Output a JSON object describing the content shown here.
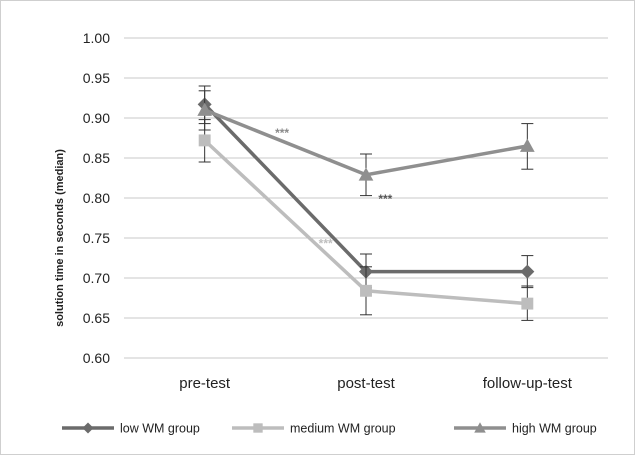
{
  "chart_data": {
    "type": "line",
    "title": "",
    "xlabel": "",
    "ylabel": "solution time in seconds (median)",
    "ylim": [
      0.6,
      1.0
    ],
    "yticks": [
      "1.00",
      "0.95",
      "0.90",
      "0.85",
      "0.80",
      "0.75",
      "0.70",
      "0.65",
      "0.60"
    ],
    "categories": [
      "pre-test",
      "post-test",
      "follow-up-test"
    ],
    "grid": true,
    "legend_position": "bottom",
    "series": [
      {
        "name": "low WM group",
        "color": "#6b6b6b",
        "marker": "diamond",
        "values": [
          0.917,
          0.708,
          0.708
        ],
        "error_low": [
          0.893,
          0.688,
          0.688
        ],
        "error_high": [
          0.94,
          0.73,
          0.728
        ]
      },
      {
        "name": "medium WM group",
        "color": "#bdbdbd",
        "marker": "square",
        "values": [
          0.872,
          0.684,
          0.668
        ],
        "error_low": [
          0.845,
          0.654,
          0.647
        ],
        "error_high": [
          0.898,
          0.714,
          0.69
        ]
      },
      {
        "name": "high WM group",
        "color": "#8f8f8f",
        "marker": "triangle",
        "values": [
          0.91,
          0.829,
          0.865
        ],
        "error_low": [
          0.885,
          0.803,
          0.836
        ],
        "error_high": [
          0.934,
          0.855,
          0.893
        ]
      }
    ],
    "annotations": [
      {
        "text": "***",
        "series": "high WM group",
        "x": 0.48,
        "y": 0.876,
        "color": "#8a8a8a"
      },
      {
        "text": "***",
        "series": "low WM group",
        "x": 1.12,
        "y": 0.794,
        "color": "#555555"
      },
      {
        "text": "***",
        "series": "medium WM group",
        "x": 0.75,
        "y": 0.738,
        "color": "#bdbdbd"
      }
    ]
  }
}
